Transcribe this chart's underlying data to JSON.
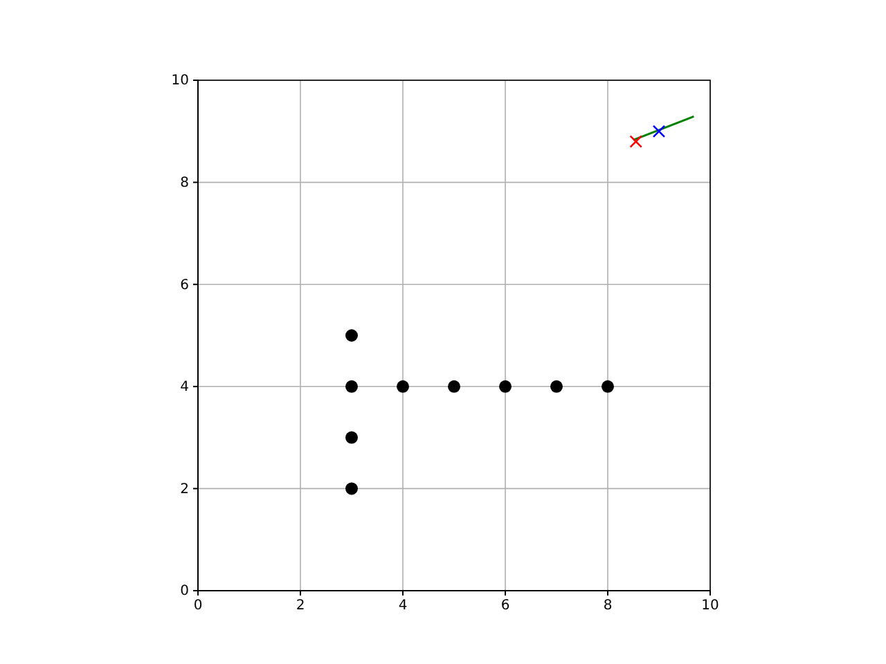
{
  "chart_data": {
    "type": "scatter",
    "xlim": [
      0,
      10
    ],
    "ylim": [
      0,
      10
    ],
    "xticks": [
      0,
      2,
      4,
      6,
      8,
      10
    ],
    "yticks": [
      0,
      2,
      4,
      6,
      8,
      10
    ],
    "grid": true,
    "series": [
      {
        "color": "#000000",
        "marker": "circle",
        "x": [
          3,
          3,
          3,
          3,
          4,
          5,
          6,
          7,
          8
        ],
        "values": [
          2,
          3,
          4,
          5,
          4,
          4,
          4,
          4,
          4
        ]
      },
      {
        "type": "line",
        "color": "#008000",
        "marker": "none",
        "x": [
          8.5,
          9.68
        ],
        "values": [
          8.83,
          9.29
        ]
      },
      {
        "type": "scatter",
        "color": "#ff0000",
        "marker": "cross",
        "x": [
          8.55
        ],
        "values": [
          8.8
        ]
      },
      {
        "type": "scatter",
        "color": "#0000ff",
        "marker": "cross",
        "x": [
          9
        ],
        "values": [
          9
        ]
      }
    ]
  }
}
